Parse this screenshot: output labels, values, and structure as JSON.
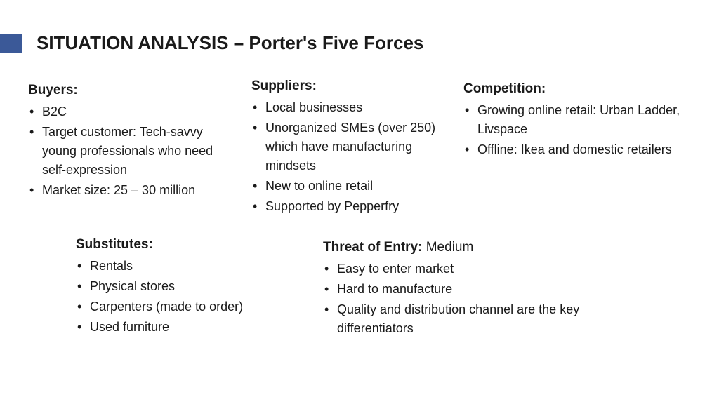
{
  "title": "SITUATION ANALYSIS – Porter's Five Forces",
  "accent_color": "#3b5998",
  "sections": {
    "buyers": {
      "heading": "Buyers:",
      "items": [
        "B2C",
        "Target customer: Tech-savvy young professionals who need self-expression",
        "Market size: 25 – 30 million"
      ]
    },
    "suppliers": {
      "heading": "Suppliers:",
      "items": [
        "Local businesses",
        "Unorganized SMEs (over 250) which have manufacturing mindsets",
        "New to online retail",
        "Supported by Pepperfry"
      ]
    },
    "competition": {
      "heading": "Competition:",
      "items": [
        "Growing online retail: Urban Ladder, Livspace",
        "Offline: Ikea and domestic retailers"
      ]
    },
    "substitutes": {
      "heading": "Substitutes:",
      "items": [
        "Rentals",
        "Physical stores",
        "Carpenters (made to order)",
        "Used furniture"
      ]
    },
    "threat": {
      "heading_prefix": "Threat of Entry: ",
      "heading_value": "Medium",
      "items": [
        "Easy to enter market",
        "Hard to manufacture",
        "Quality and distribution channel are the key differentiators"
      ]
    }
  }
}
